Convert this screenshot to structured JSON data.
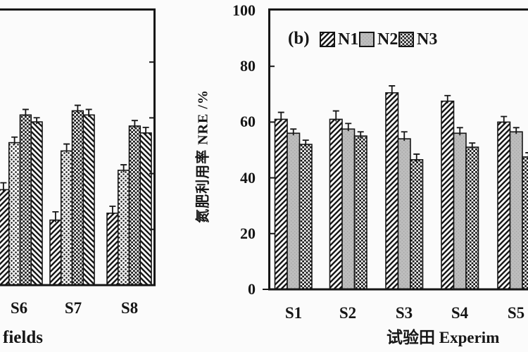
{
  "figure": {
    "background": "#fbfbfb",
    "ink_color": "#161616",
    "gray_fill": "#bdbdbd"
  },
  "panel_a": {
    "x_tick_labels": [
      "S6",
      "S7",
      "S8"
    ],
    "x_axis_label_visible": "fields"
  },
  "panel_b": {
    "panel_tag": "(b)",
    "y_axis_title": "氮肥利用率 NRE /%",
    "y_tick_labels": [
      "100",
      "80",
      "60",
      "40",
      "20",
      "0"
    ],
    "x_tick_labels": [
      "S1",
      "S2",
      "S3",
      "S4",
      "S5"
    ],
    "x_axis_label_visible": "试验田 Experim",
    "legend_items": [
      "N1",
      "N2",
      "N3"
    ]
  },
  "chart_data": [
    {
      "id": "a",
      "type": "bar",
      "categories": [
        "S6",
        "S7",
        "S8"
      ],
      "ylim": [
        0,
        100
      ],
      "grid": false,
      "series": [
        {
          "name": "",
          "pattern": "diag-up",
          "values": [
            34.5,
            23.5,
            26.0
          ],
          "errors": [
            2.5,
            3.0,
            2.5
          ]
        },
        {
          "name": "",
          "pattern": "dots",
          "values": [
            51.5,
            48.5,
            41.5
          ],
          "errors": [
            2.0,
            2.5,
            2.0
          ]
        },
        {
          "name": "",
          "pattern": "checker",
          "values": [
            61.5,
            63.0,
            57.5
          ],
          "errors": [
            2.0,
            2.0,
            2.0
          ]
        },
        {
          "name": "",
          "pattern": "diag-down",
          "values": [
            59.0,
            61.5,
            55.0
          ],
          "errors": [
            1.5,
            2.0,
            2.0
          ]
        }
      ]
    },
    {
      "id": "b",
      "type": "bar",
      "title": "(b)",
      "categories": [
        "S1",
        "S2",
        "S3",
        "S4",
        "S5"
      ],
      "ylabel": "氮肥利用率 NRE /%",
      "xlabel_visible": "试验田 Experim",
      "ylim": [
        0,
        100
      ],
      "yticks": [
        0,
        20,
        40,
        60,
        80,
        100
      ],
      "grid": false,
      "legend_position": "top-left-inside",
      "series": [
        {
          "name": "N1",
          "pattern": "diag-up",
          "values": [
            61.0,
            61.0,
            70.5,
            67.5,
            60.0
          ],
          "errors": [
            2.5,
            3.0,
            2.5,
            2.0,
            2.0
          ]
        },
        {
          "name": "N2",
          "pattern": "gray",
          "values": [
            56.0,
            57.5,
            54.0,
            56.0,
            56.5
          ],
          "errors": [
            1.5,
            2.0,
            2.5,
            2.0,
            1.5
          ]
        },
        {
          "name": "N3",
          "pattern": "checker",
          "values": [
            52.0,
            55.0,
            46.5,
            51.0,
            47.5
          ],
          "errors": [
            1.5,
            1.5,
            2.0,
            1.5,
            1.5
          ]
        }
      ]
    }
  ]
}
